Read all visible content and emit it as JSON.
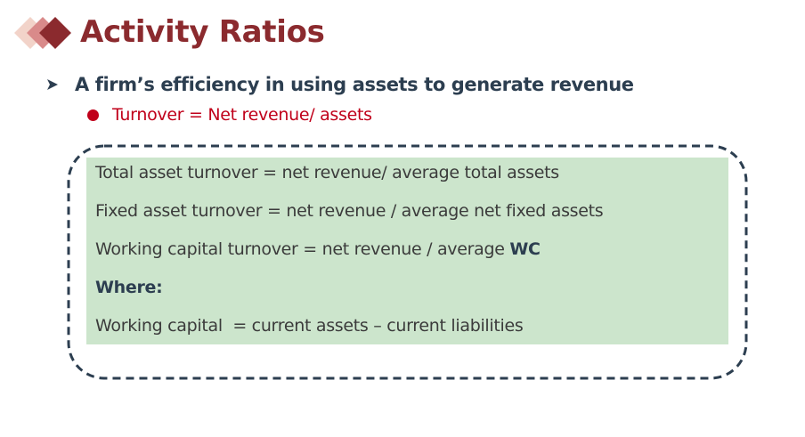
{
  "slide": {
    "title": "Activity Ratios",
    "bullet_main": "A firm’s efficiency in using assets to generate revenue",
    "bullet_sub": "Turnover = Net revenue/ assets",
    "formulas": {
      "total_asset_turnover": "Total asset turnover = net revenue/ average total assets",
      "fixed_asset_turnover": "Fixed asset turnover = net revenue / average net fixed assets",
      "working_capital_turnover_prefix": "Working capital turnover = net revenue / average ",
      "working_capital_turnover_bold": "WC",
      "where_label": "Where:",
      "working_capital_definition": "Working capital  = current assets – current liabilities"
    }
  },
  "colors": {
    "title": "#8b2a2e",
    "bullet_main": "#2c3e50",
    "bullet_sub": "#c0001a",
    "panel": "#cce5cc",
    "dash_border": "#2c3e50",
    "diamond_dark": "#8b2a2e",
    "diamond_mid": "#d98a8a",
    "diamond_light": "#f2d3c9"
  },
  "icons": {
    "title_logo": "stacked-diamonds-icon",
    "bullet_main": "arrowhead-icon",
    "bullet_sub": "filled-circle-icon"
  }
}
